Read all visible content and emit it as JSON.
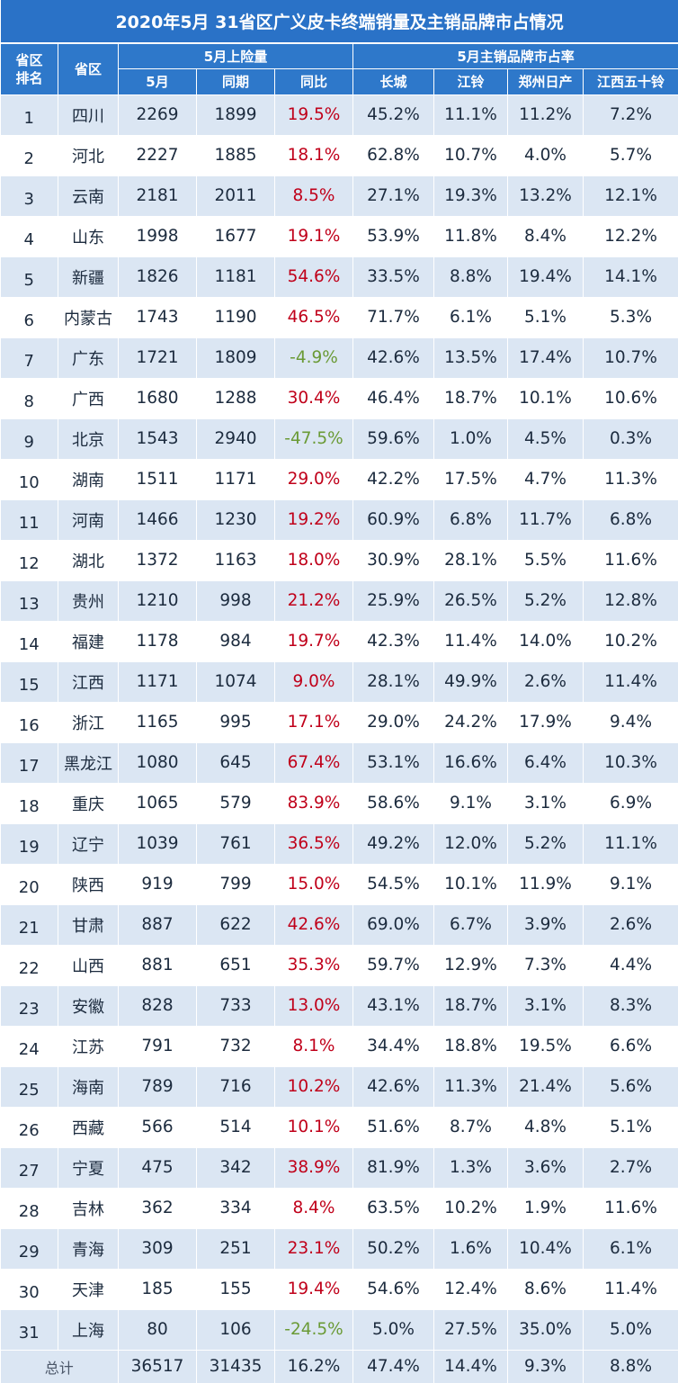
{
  "title": "2020年5月 31省区广义皮卡终端销量及主销品牌市占情况",
  "headers": {
    "rank": "省区排名",
    "province": "省区",
    "group_sales": "5月上险量",
    "group_share": "5月主销品牌市占率",
    "may": "5月",
    "prior": "同期",
    "yoy": "同比",
    "greatwall": "长城",
    "jmc": "江铃",
    "zhengzhou_nissan": "郑州日产",
    "jx_isuzu": "江西五十铃"
  },
  "colors": {
    "header_bg": "#2e78ca",
    "row_alt_bg": "#dbe6f3",
    "positive": "#c0001a",
    "negative": "#6a9a35"
  },
  "chart_data": {
    "type": "table",
    "title": "2020年5月 31省区广义皮卡终端销量及主销品牌市占情况",
    "columns": [
      "省区排名",
      "省区",
      "5月",
      "同期",
      "同比",
      "长城",
      "江铃",
      "郑州日产",
      "江西五十铃"
    ],
    "rows": [
      {
        "rank": "1",
        "province": "四川",
        "may": "2269",
        "prior": "1899",
        "yoy": "19.5%",
        "gw": "45.2%",
        "jmc": "11.1%",
        "zn": "11.2%",
        "jx": "7.2%"
      },
      {
        "rank": "2",
        "province": "河北",
        "may": "2227",
        "prior": "1885",
        "yoy": "18.1%",
        "gw": "62.8%",
        "jmc": "10.7%",
        "zn": "4.0%",
        "jx": "5.7%"
      },
      {
        "rank": "3",
        "province": "云南",
        "may": "2181",
        "prior": "2011",
        "yoy": "8.5%",
        "gw": "27.1%",
        "jmc": "19.3%",
        "zn": "13.2%",
        "jx": "12.1%"
      },
      {
        "rank": "4",
        "province": "山东",
        "may": "1998",
        "prior": "1677",
        "yoy": "19.1%",
        "gw": "53.9%",
        "jmc": "11.8%",
        "zn": "8.4%",
        "jx": "12.2%"
      },
      {
        "rank": "5",
        "province": "新疆",
        "may": "1826",
        "prior": "1181",
        "yoy": "54.6%",
        "gw": "33.5%",
        "jmc": "8.8%",
        "zn": "19.4%",
        "jx": "14.1%"
      },
      {
        "rank": "6",
        "province": "内蒙古",
        "may": "1743",
        "prior": "1190",
        "yoy": "46.5%",
        "gw": "71.7%",
        "jmc": "6.1%",
        "zn": "5.1%",
        "jx": "5.3%"
      },
      {
        "rank": "7",
        "province": "广东",
        "may": "1721",
        "prior": "1809",
        "yoy": "-4.9%",
        "gw": "42.6%",
        "jmc": "13.5%",
        "zn": "17.4%",
        "jx": "10.7%"
      },
      {
        "rank": "8",
        "province": "广西",
        "may": "1680",
        "prior": "1288",
        "yoy": "30.4%",
        "gw": "46.4%",
        "jmc": "18.7%",
        "zn": "10.1%",
        "jx": "10.6%"
      },
      {
        "rank": "9",
        "province": "北京",
        "may": "1543",
        "prior": "2940",
        "yoy": "-47.5%",
        "gw": "59.6%",
        "jmc": "1.0%",
        "zn": "4.5%",
        "jx": "0.3%"
      },
      {
        "rank": "10",
        "province": "湖南",
        "may": "1511",
        "prior": "1171",
        "yoy": "29.0%",
        "gw": "42.2%",
        "jmc": "17.5%",
        "zn": "4.7%",
        "jx": "11.3%"
      },
      {
        "rank": "11",
        "province": "河南",
        "may": "1466",
        "prior": "1230",
        "yoy": "19.2%",
        "gw": "60.9%",
        "jmc": "6.8%",
        "zn": "11.7%",
        "jx": "6.8%"
      },
      {
        "rank": "12",
        "province": "湖北",
        "may": "1372",
        "prior": "1163",
        "yoy": "18.0%",
        "gw": "30.9%",
        "jmc": "28.1%",
        "zn": "5.5%",
        "jx": "11.6%"
      },
      {
        "rank": "13",
        "province": "贵州",
        "may": "1210",
        "prior": "998",
        "yoy": "21.2%",
        "gw": "25.9%",
        "jmc": "26.5%",
        "zn": "5.2%",
        "jx": "12.8%"
      },
      {
        "rank": "14",
        "province": "福建",
        "may": "1178",
        "prior": "984",
        "yoy": "19.7%",
        "gw": "42.3%",
        "jmc": "11.4%",
        "zn": "14.0%",
        "jx": "10.2%"
      },
      {
        "rank": "15",
        "province": "江西",
        "may": "1171",
        "prior": "1074",
        "yoy": "9.0%",
        "gw": "28.1%",
        "jmc": "49.9%",
        "zn": "2.6%",
        "jx": "11.4%"
      },
      {
        "rank": "16",
        "province": "浙江",
        "may": "1165",
        "prior": "995",
        "yoy": "17.1%",
        "gw": "29.0%",
        "jmc": "24.2%",
        "zn": "17.9%",
        "jx": "9.4%"
      },
      {
        "rank": "17",
        "province": "黑龙江",
        "may": "1080",
        "prior": "645",
        "yoy": "67.4%",
        "gw": "53.1%",
        "jmc": "16.6%",
        "zn": "6.4%",
        "jx": "10.3%"
      },
      {
        "rank": "18",
        "province": "重庆",
        "may": "1065",
        "prior": "579",
        "yoy": "83.9%",
        "gw": "58.6%",
        "jmc": "9.1%",
        "zn": "3.1%",
        "jx": "6.9%"
      },
      {
        "rank": "19",
        "province": "辽宁",
        "may": "1039",
        "prior": "761",
        "yoy": "36.5%",
        "gw": "49.2%",
        "jmc": "12.0%",
        "zn": "5.2%",
        "jx": "11.1%"
      },
      {
        "rank": "20",
        "province": "陕西",
        "may": "919",
        "prior": "799",
        "yoy": "15.0%",
        "gw": "54.5%",
        "jmc": "10.1%",
        "zn": "11.9%",
        "jx": "9.1%"
      },
      {
        "rank": "21",
        "province": "甘肃",
        "may": "887",
        "prior": "622",
        "yoy": "42.6%",
        "gw": "69.0%",
        "jmc": "6.7%",
        "zn": "3.9%",
        "jx": "2.6%"
      },
      {
        "rank": "22",
        "province": "山西",
        "may": "881",
        "prior": "651",
        "yoy": "35.3%",
        "gw": "59.7%",
        "jmc": "12.9%",
        "zn": "7.3%",
        "jx": "4.4%"
      },
      {
        "rank": "23",
        "province": "安徽",
        "may": "828",
        "prior": "733",
        "yoy": "13.0%",
        "gw": "43.1%",
        "jmc": "18.7%",
        "zn": "3.1%",
        "jx": "8.3%"
      },
      {
        "rank": "24",
        "province": "江苏",
        "may": "791",
        "prior": "732",
        "yoy": "8.1%",
        "gw": "34.4%",
        "jmc": "18.8%",
        "zn": "19.5%",
        "jx": "6.6%"
      },
      {
        "rank": "25",
        "province": "海南",
        "may": "789",
        "prior": "716",
        "yoy": "10.2%",
        "gw": "42.6%",
        "jmc": "11.3%",
        "zn": "21.4%",
        "jx": "5.6%"
      },
      {
        "rank": "26",
        "province": "西藏",
        "may": "566",
        "prior": "514",
        "yoy": "10.1%",
        "gw": "51.6%",
        "jmc": "8.7%",
        "zn": "4.8%",
        "jx": "5.1%"
      },
      {
        "rank": "27",
        "province": "宁夏",
        "may": "475",
        "prior": "342",
        "yoy": "38.9%",
        "gw": "81.9%",
        "jmc": "1.3%",
        "zn": "3.6%",
        "jx": "2.7%"
      },
      {
        "rank": "28",
        "province": "吉林",
        "may": "362",
        "prior": "334",
        "yoy": "8.4%",
        "gw": "63.5%",
        "jmc": "10.2%",
        "zn": "1.9%",
        "jx": "11.6%"
      },
      {
        "rank": "29",
        "province": "青海",
        "may": "309",
        "prior": "251",
        "yoy": "23.1%",
        "gw": "50.2%",
        "jmc": "1.6%",
        "zn": "10.4%",
        "jx": "6.1%"
      },
      {
        "rank": "30",
        "province": "天津",
        "may": "185",
        "prior": "155",
        "yoy": "19.4%",
        "gw": "54.6%",
        "jmc": "12.4%",
        "zn": "8.6%",
        "jx": "11.4%"
      },
      {
        "rank": "31",
        "province": "上海",
        "may": "80",
        "prior": "106",
        "yoy": "-24.5%",
        "gw": "5.0%",
        "jmc": "27.5%",
        "zn": "35.0%",
        "jx": "5.0%"
      }
    ],
    "total": {
      "label": "总计",
      "may": "36517",
      "prior": "31435",
      "yoy": "16.2%",
      "gw": "47.4%",
      "jmc": "14.4%",
      "zn": "9.3%",
      "jx": "8.8%"
    }
  }
}
